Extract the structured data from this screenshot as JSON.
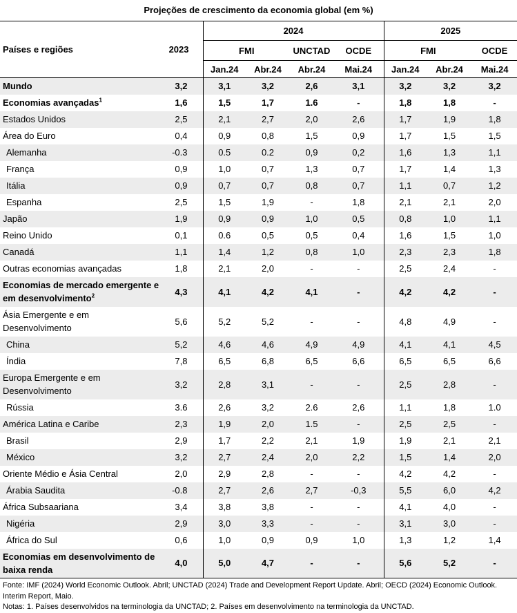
{
  "title": "Projeções de crescimento da economia global (em %)",
  "header": {
    "region_col": "Países e regiões",
    "year_2023": "2023",
    "year_2024": "2024",
    "year_2025": "2025",
    "src_fmi_2024": "FMI",
    "src_unctad_2024": "UNCTAD",
    "src_ocde_2024": "OCDE",
    "src_fmi_2025": "FMI",
    "src_ocde_2025": "OCDE",
    "cols": [
      "Jan.24",
      "Abr.24",
      "Abr.24",
      "Mai.24",
      "Jan.24",
      "Abr.24",
      "Mai.24"
    ]
  },
  "rows": [
    {
      "name": "Mundo",
      "bold": true,
      "indent": false,
      "vals": [
        "3,2",
        "3,1",
        "3,2",
        "2,6",
        "3,1",
        "3,2",
        "3,2",
        "3,2"
      ]
    },
    {
      "name": "Economias avançadas",
      "sup": "1",
      "bold": true,
      "indent": false,
      "vals": [
        "1,6",
        "1,5",
        "1,7",
        "1.6",
        "-",
        "1,8",
        "1,8",
        "-"
      ]
    },
    {
      "name": "Estados Unidos",
      "vals": [
        "2,5",
        "2,1",
        "2,7",
        "2,0",
        "2,6",
        "1,7",
        "1,9",
        "1,8"
      ]
    },
    {
      "name": "Área do Euro",
      "vals": [
        "0,4",
        "0,9",
        "0,8",
        "1,5",
        "0,9",
        "1,7",
        "1,5",
        "1,5"
      ]
    },
    {
      "name": "Alemanha",
      "indent": true,
      "vals": [
        "-0.3",
        "0.5",
        "0.2",
        "0,9",
        "0,2",
        "1,6",
        "1,3",
        "1,1"
      ]
    },
    {
      "name": "França",
      "indent": true,
      "vals": [
        "0,9",
        "1,0",
        "0,7",
        "1,3",
        "0,7",
        "1,7",
        "1,4",
        "1,3"
      ]
    },
    {
      "name": "Itália",
      "indent": true,
      "vals": [
        "0,9",
        "0,7",
        "0,7",
        "0,8",
        "0,7",
        "1,1",
        "0,7",
        "1,2"
      ]
    },
    {
      "name": "Espanha",
      "indent": true,
      "vals": [
        "2,5",
        "1,5",
        "1,9",
        "-",
        "1,8",
        "2,1",
        "2,1",
        "2,0"
      ]
    },
    {
      "name": "Japão",
      "vals": [
        "1,9",
        "0,9",
        "0,9",
        "1,0",
        "0,5",
        "0,8",
        "1,0",
        "1,1"
      ]
    },
    {
      "name": "Reino Unido",
      "vals": [
        "0,1",
        "0.6",
        "0,5",
        "0,5",
        "0,4",
        "1,6",
        "1,5",
        "1,0"
      ]
    },
    {
      "name": "Canadá",
      "vals": [
        "1,1",
        "1,4",
        "1,2",
        "0,8",
        "1,0",
        "2,3",
        "2,3",
        "1,8"
      ]
    },
    {
      "name": "Outras economias avançadas",
      "vals": [
        "1,8",
        "2,1",
        "2,0",
        "-",
        "-",
        "2,5",
        "2,4",
        "-"
      ]
    },
    {
      "name": "Economias de mercado emergente e em desenvolvimento",
      "sup": "2",
      "bold": true,
      "tall": true,
      "vals": [
        "4,3",
        "4,1",
        "4,2",
        "4,1",
        "-",
        "4,2",
        "4,2",
        "-"
      ]
    },
    {
      "name": "Ásia Emergente e em Desenvolvimento",
      "tall": true,
      "vals": [
        "5,6",
        "5,2",
        "5,2",
        "-",
        "-",
        "4,8",
        "4,9",
        "-"
      ]
    },
    {
      "name": "China",
      "indent": true,
      "vals": [
        "5,2",
        "4,6",
        "4,6",
        "4,9",
        "4,9",
        "4,1",
        "4,1",
        "4,5"
      ]
    },
    {
      "name": "Índia",
      "indent": true,
      "vals": [
        "7,8",
        "6,5",
        "6,8",
        "6,5",
        "6,6",
        "6,5",
        "6,5",
        "6,6"
      ]
    },
    {
      "name": "Europa Emergente e em Desenvolvimento",
      "tall": true,
      "vals": [
        "3,2",
        "2,8",
        "3,1",
        "-",
        "-",
        "2,5",
        "2,8",
        "-"
      ]
    },
    {
      "name": "Rússia",
      "indent": true,
      "vals": [
        "3.6",
        "2,6",
        "3,2",
        "2.6",
        "2,6",
        "1,1",
        "1,8",
        "1.0"
      ]
    },
    {
      "name": "América Latina e Caribe",
      "vals": [
        "2,3",
        "1,9",
        "2,0",
        "1.5",
        "-",
        "2,5",
        "2,5",
        "-"
      ]
    },
    {
      "name": "Brasil",
      "indent": true,
      "vals": [
        "2,9",
        "1,7",
        "2,2",
        "2,1",
        "1,9",
        "1,9",
        "2,1",
        "2,1"
      ]
    },
    {
      "name": "México",
      "indent": true,
      "vals": [
        "3,2",
        "2,7",
        "2,4",
        "2,0",
        "2,2",
        "1,5",
        "1,4",
        "2,0"
      ]
    },
    {
      "name": "Oriente Médio e Ásia Central",
      "vals": [
        "2,0",
        "2,9",
        "2,8",
        "-",
        "-",
        "4,2",
        "4,2",
        "-"
      ]
    },
    {
      "name": "Árabia Saudita",
      "indent": true,
      "vals": [
        "-0.8",
        "2,7",
        "2,6",
        "2,7",
        "-0,3",
        "5,5",
        "6,0",
        "4,2"
      ]
    },
    {
      "name": "África Subsaariana",
      "vals": [
        "3,4",
        "3,8",
        "3,8",
        "-",
        "-",
        "4,1",
        "4,0",
        "-"
      ]
    },
    {
      "name": "Nigéria",
      "indent": true,
      "vals": [
        "2,9",
        "3,0",
        "3,3",
        "-",
        "-",
        "3,1",
        "3,0",
        "-"
      ]
    },
    {
      "name": "África do Sul",
      "indent": true,
      "vals": [
        "0,6",
        "1,0",
        "0,9",
        "0,9",
        "1,0",
        "1,3",
        "1,2",
        "1,4"
      ]
    },
    {
      "name": "Economias em desenvolvimento de baixa renda",
      "bold": true,
      "tall": true,
      "vals": [
        "4,0",
        "5,0",
        "4,7",
        "-",
        "-",
        "5,6",
        "5,2",
        "-"
      ]
    }
  ],
  "notes": {
    "source": "Fonte: IMF (2024) World Economic Outlook. Abril; UNCTAD (2024) Trade and Development Report Update. Abril; OECD (2024) Economic Outlook. Interim Report, Maio.",
    "footnotes": "Notas: 1. Países desenvolvidos na terminologia da UNCTAD; 2. Países em desenvolvimento na terminologia da UNCTAD."
  },
  "colors": {
    "stripe": "#ececec",
    "rule": "#000000"
  }
}
